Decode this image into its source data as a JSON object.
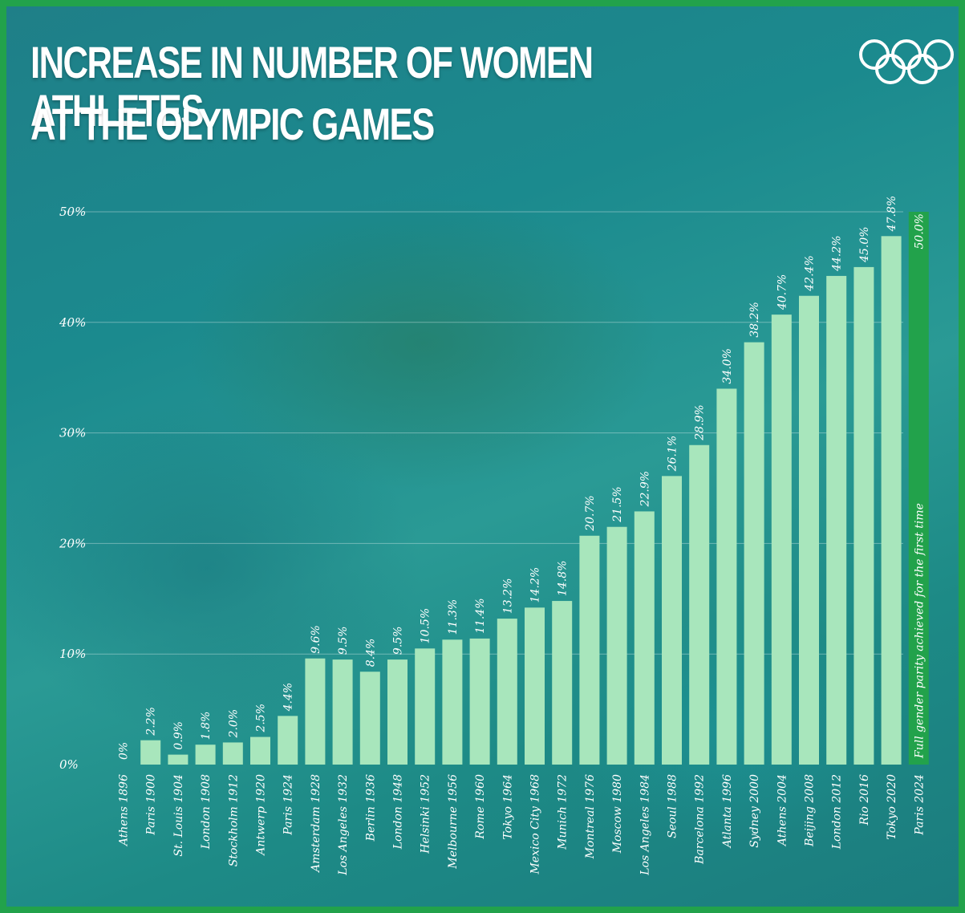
{
  "title_line1": "INCREASE IN NUMBER OF WOMEN ATHLETES",
  "title_line2": "AT THE OLYMPIC GAMES",
  "logo_icon": "olympic-rings",
  "colors": {
    "bar": "#a8e6bc",
    "highlight_bar": "#22a24b",
    "frame": "#22a24b",
    "text": "#ffffff"
  },
  "chart_data": {
    "type": "bar",
    "title": "INCREASE IN NUMBER OF WOMEN ATHLETES AT THE OLYMPIC GAMES",
    "ylim": [
      0,
      50
    ],
    "yticks": [
      0,
      10,
      20,
      30,
      40,
      50
    ],
    "ytick_labels": [
      "0%",
      "10%",
      "20%",
      "30%",
      "40%",
      "50%"
    ],
    "grid": true,
    "categories": [
      "Athens 1896",
      "Paris 1900",
      "St. Louis 1904",
      "London 1908",
      "Stockholm 1912",
      "Antwerp 1920",
      "Paris 1924",
      "Amsterdam 1928",
      "Los Angeles 1932",
      "Berlin 1936",
      "London 1948",
      "Helsinki 1952",
      "Melbourne 1956",
      "Rome 1960",
      "Tokyo 1964",
      "Mexico City 1968",
      "Munich 1972",
      "Montreal 1976",
      "Moscow 1980",
      "Los Angeles 1984",
      "Seoul 1988",
      "Barcelona 1992",
      "Atlanta 1996",
      "Sydney 2000",
      "Athens 2004",
      "Beijing 2008",
      "London 2012",
      "Rio 2016",
      "Tokyo 2020",
      "Paris 2024"
    ],
    "values": [
      0,
      2.2,
      0.9,
      1.8,
      2.0,
      2.5,
      4.4,
      9.6,
      9.5,
      8.4,
      9.5,
      10.5,
      11.3,
      11.4,
      13.2,
      14.2,
      14.8,
      20.7,
      21.5,
      22.9,
      26.1,
      28.9,
      34.0,
      38.2,
      40.7,
      42.4,
      44.2,
      45.0,
      47.8,
      50.0
    ],
    "value_labels": [
      "0%",
      "2.2%",
      "0.9%",
      "1.8%",
      "2.0%",
      "2.5%",
      "4.4%",
      "9.6%",
      "9.5%",
      "8.4%",
      "9.5%",
      "10.5%",
      "11.3%",
      "11.4%",
      "13.2%",
      "14.2%",
      "14.8%",
      "20.7%",
      "21.5%",
      "22.9%",
      "26.1%",
      "28.9%",
      "34.0%",
      "38.2%",
      "40.7%",
      "42.4%",
      "44.2%",
      "45.0%",
      "47.8%",
      "50.0%"
    ],
    "highlight_index": 29,
    "annotation": "Full gender parity achieved for the first time"
  }
}
